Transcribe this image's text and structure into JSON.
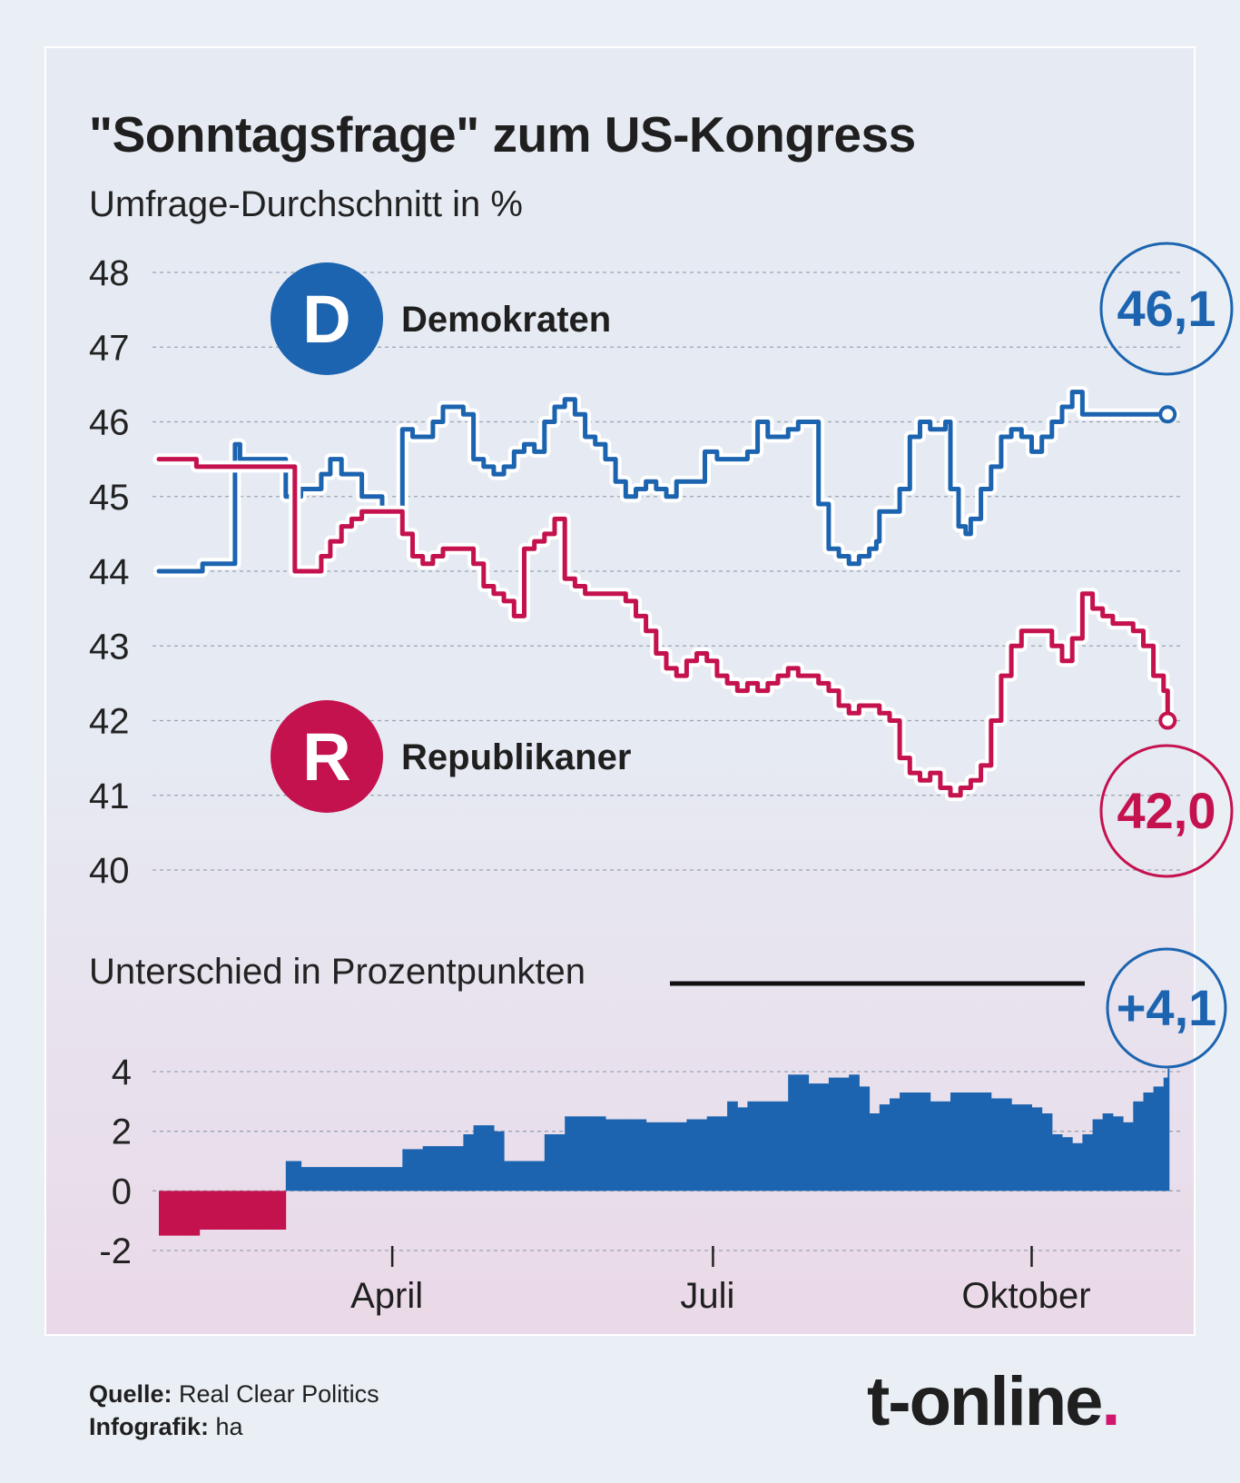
{
  "title": "\"Sonntagsfrage\" zum US-Kongress",
  "subtitle": "Umfrage-Durchschnitt in %",
  "colors": {
    "dem": "#1c64b0",
    "rep": "#c4124f",
    "bar_dem": "#1c64b0",
    "bar_rep": "#c4124f"
  },
  "chart_data": [
    {
      "type": "line",
      "title": "\"Sonntagsfrage\" zum US-Kongress",
      "ylabel": "Umfrage-Durchschnitt in %",
      "ylim": [
        40,
        48
      ],
      "yticks": [
        "48",
        "47",
        "46",
        "45",
        "44",
        "43",
        "42",
        "41",
        "40"
      ],
      "xlim": [
        0,
        100
      ],
      "xticks": [
        {
          "label": "April",
          "x": 23
        },
        {
          "label": "Juli",
          "x": 54.6
        },
        {
          "label": "Oktober",
          "x": 86
        }
      ],
      "series": [
        {
          "name": "Demokraten",
          "letter": "D",
          "end_label": "46,1",
          "x": [
            0,
            3.5,
            4.3,
            7,
            7.5,
            8,
            9.3,
            10,
            12,
            12.5,
            13.4,
            14,
            16,
            16.9,
            18,
            18.5,
            19,
            20,
            22,
            24,
            25,
            25.5,
            26,
            27,
            28,
            29,
            30,
            31,
            32,
            33,
            34,
            35,
            36,
            37,
            38,
            39,
            40,
            40.6,
            41,
            42,
            43,
            44,
            45,
            46,
            47,
            48,
            49,
            50,
            51,
            52,
            53,
            53.8,
            55,
            56,
            57,
            58,
            59,
            60,
            61,
            62,
            63,
            64,
            65,
            66,
            67,
            68,
            69,
            70,
            70.7,
            71,
            72,
            73,
            74,
            75,
            76,
            77,
            77.5,
            78,
            78.8,
            79.5,
            80,
            81,
            82,
            83,
            84,
            85,
            86,
            87,
            88,
            89,
            90,
            91,
            92,
            93,
            94,
            95,
            96,
            97,
            98,
            99,
            100
          ],
          "y": [
            44,
            44,
            44.1,
            44.1,
            45.7,
            45.5,
            45.5,
            45.5,
            45.5,
            45,
            45,
            45.1,
            45.3,
            45.5,
            45.3,
            45.3,
            45.3,
            45,
            44.8,
            45.9,
            45.8,
            45.8,
            45.8,
            46,
            46.2,
            46.2,
            46.1,
            45.5,
            45.4,
            45.3,
            45.4,
            45.6,
            45.7,
            45.6,
            46,
            46.2,
            46.3,
            46.3,
            46.1,
            45.8,
            45.7,
            45.5,
            45.2,
            45,
            45.1,
            45.2,
            45.1,
            45.0,
            45.2,
            45.2,
            45.2,
            45.6,
            45.5,
            45.5,
            45.5,
            45.6,
            46.0,
            45.8,
            45.8,
            45.9,
            46.0,
            46.0,
            44.9,
            44.3,
            44.2,
            44.1,
            44.2,
            44.3,
            44.4,
            44.8,
            44.8,
            45.1,
            45.8,
            46.0,
            45.9,
            45.9,
            46.0,
            45.1,
            44.6,
            44.5,
            44.7,
            45.1,
            45.4,
            45.8,
            45.9,
            45.8,
            45.6,
            45.8,
            46.0,
            46.2,
            46.4,
            46.1,
            46.1,
            46.1,
            46.1,
            46.1,
            46.1,
            46.1,
            46.1,
            46.1,
            46.1
          ],
          "x_end": 99.4
        },
        {
          "name": "Republikaner",
          "letter": "R",
          "end_label": "42,0",
          "x": [
            0,
            3.3,
            3.7,
            7,
            7.5,
            12.5,
            13.4,
            14,
            16,
            16.9,
            18,
            19,
            20,
            22,
            24,
            25,
            26,
            27,
            28,
            30,
            31,
            32,
            33,
            34,
            35,
            36,
            37,
            38,
            39,
            40,
            41,
            42,
            43,
            44,
            45,
            46,
            47,
            48,
            49,
            50,
            51,
            52,
            53,
            54,
            55,
            56,
            57,
            58,
            59,
            60,
            61,
            62,
            63,
            64,
            65,
            66,
            67,
            68,
            69,
            70,
            71,
            72,
            73,
            74,
            75,
            76,
            77,
            78,
            79,
            80,
            81,
            82,
            83,
            84,
            85,
            86,
            87,
            88,
            89,
            90,
            91,
            92,
            93,
            94,
            95,
            96,
            97,
            98,
            99,
            99.4
          ],
          "y": [
            45.5,
            45.5,
            45.4,
            45.4,
            45.4,
            45.4,
            44,
            44,
            44.2,
            44.4,
            44.6,
            44.7,
            44.8,
            44.8,
            44.5,
            44.2,
            44.1,
            44.2,
            44.3,
            44.3,
            44.1,
            43.8,
            43.7,
            43.6,
            43.4,
            44.3,
            44.4,
            44.5,
            44.7,
            43.9,
            43.8,
            43.7,
            43.7,
            43.7,
            43.7,
            43.6,
            43.4,
            43.2,
            42.9,
            42.7,
            42.6,
            42.8,
            42.9,
            42.8,
            42.6,
            42.5,
            42.4,
            42.5,
            42.4,
            42.5,
            42.6,
            42.7,
            42.6,
            42.6,
            42.5,
            42.4,
            42.2,
            42.1,
            42.2,
            42.2,
            42.1,
            42.0,
            41.5,
            41.3,
            41.2,
            41.3,
            41.1,
            41.0,
            41.1,
            41.2,
            41.4,
            42.0,
            42.6,
            43.0,
            43.2,
            43.2,
            43.2,
            43.0,
            42.8,
            43.1,
            43.7,
            43.5,
            43.4,
            43.3,
            43.3,
            43.2,
            43.0,
            42.6,
            42.4,
            42.0
          ],
          "x_end": 99.4
        }
      ]
    },
    {
      "type": "bar",
      "title": "Unterschied in Prozentpunkten",
      "ylim": [
        -2,
        4
      ],
      "yticks": [
        "4",
        "2",
        "0",
        "-2"
      ],
      "end_label": "+4,1",
      "x": [
        0,
        3,
        4,
        7,
        8,
        12.5,
        14,
        16,
        18,
        19,
        20,
        22,
        24,
        25,
        26,
        27,
        28,
        30,
        31,
        32,
        33,
        34,
        35,
        36,
        37,
        38,
        40,
        42,
        44,
        46,
        48,
        50,
        52,
        54,
        56,
        57,
        58,
        60,
        62,
        64,
        66,
        67,
        68,
        69,
        70,
        71,
        72,
        73,
        74,
        76,
        78,
        80,
        82,
        84,
        86,
        87,
        88,
        89,
        90,
        91,
        92,
        93,
        94,
        95,
        96,
        97,
        98,
        99,
        99.4
      ],
      "values": [
        -1.5,
        -1.5,
        -1.3,
        -1.3,
        -1.3,
        1.0,
        0.8,
        0.8,
        0.8,
        0.8,
        0.8,
        0.8,
        1.4,
        1.4,
        1.5,
        1.5,
        1.5,
        1.9,
        2.2,
        2.2,
        2.0,
        1.0,
        1.0,
        1.0,
        1.0,
        1.9,
        2.5,
        2.5,
        2.4,
        2.4,
        2.3,
        2.3,
        2.4,
        2.5,
        3.0,
        2.8,
        3.0,
        3.0,
        3.9,
        3.6,
        3.8,
        3.8,
        3.9,
        3.5,
        2.6,
        2.9,
        3.1,
        3.3,
        3.3,
        3.0,
        3.3,
        3.3,
        3.1,
        2.9,
        2.8,
        2.6,
        1.9,
        1.8,
        1.6,
        1.9,
        2.4,
        2.6,
        2.5,
        2.3,
        3.0,
        3.3,
        3.5,
        3.8,
        4.1
      ]
    }
  ],
  "footer": {
    "source_label": "Quelle:",
    "source_value": "Real Clear Politics",
    "credit_label": "Infografik:",
    "credit_value": "ha",
    "logo": "t-online",
    "logo_dot": "."
  }
}
